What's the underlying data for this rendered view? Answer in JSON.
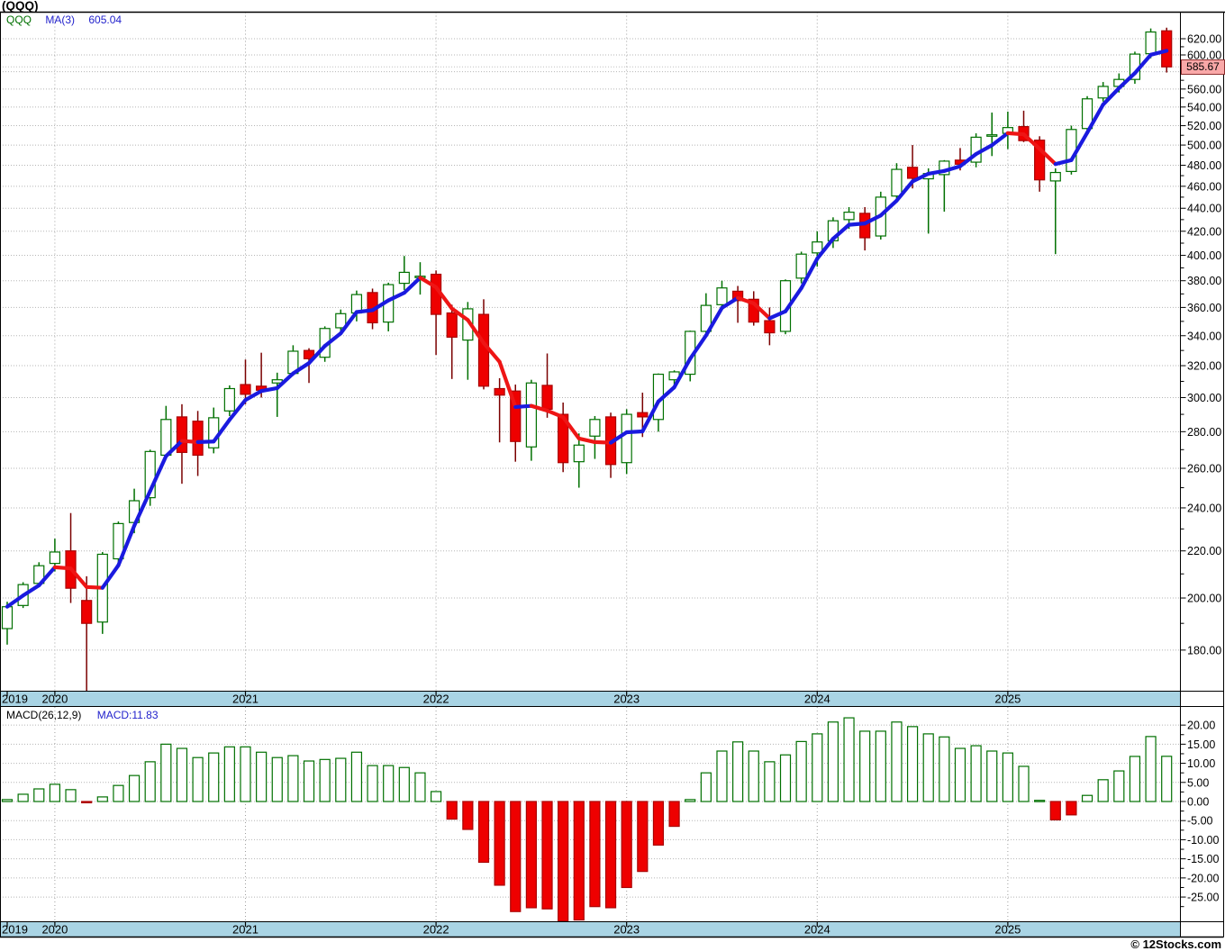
{
  "title": "(QQQ)",
  "legend": {
    "symbol": "QQQ",
    "ma_label": "MA(3)",
    "ma_value": "605.04"
  },
  "macd_legend": {
    "label": "MACD(26,12,9)",
    "value": "MACD:11.83"
  },
  "current_price_label": "585.67",
  "copyright": "© 12Stocks.com",
  "colors": {
    "up": "#007000",
    "up_fill": "#ffffff",
    "down": "#aa0000",
    "down_fill": "#ee0000",
    "down_wick": "#7a0000",
    "ma_up": "#1a1adf",
    "ma_down": "#ee1515",
    "grid": "#9e9e9e",
    "border": "#000000",
    "axis_strip_bg": "#a9d4e4",
    "price_label_bg": "#f9a8a8",
    "price_label_border": "#8e3030",
    "legend_symbol": "#007000",
    "legend_value": "#2222cc",
    "current_price_line": "#c0c0c0"
  },
  "price_axis": {
    "scale": "log",
    "min": 170,
    "max": 630,
    "ticks": [
      {
        "v": 620,
        "t": "620.00"
      },
      {
        "v": 600,
        "t": "600.00"
      },
      {
        "v": 580,
        "t": ""
      },
      {
        "v": 560,
        "t": "560.00"
      },
      {
        "v": 540,
        "t": "540.00"
      },
      {
        "v": 520,
        "t": "520.00"
      },
      {
        "v": 500,
        "t": "500.00"
      },
      {
        "v": 480,
        "t": "480.00"
      },
      {
        "v": 460,
        "t": "460.00"
      },
      {
        "v": 440,
        "t": "440.00"
      },
      {
        "v": 420,
        "t": "420.00"
      },
      {
        "v": 400,
        "t": "400.00"
      },
      {
        "v": 380,
        "t": "380.00"
      },
      {
        "v": 360,
        "t": "360.00"
      },
      {
        "v": 340,
        "t": "340.00"
      },
      {
        "v": 320,
        "t": "320.00"
      },
      {
        "v": 300,
        "t": "300.00"
      },
      {
        "v": 280,
        "t": "280.00"
      },
      {
        "v": 260,
        "t": "260.00"
      },
      {
        "v": 240,
        "t": "240.00"
      },
      {
        "v": 220,
        "t": "220.00"
      },
      {
        "v": 200,
        "t": "200.00"
      },
      {
        "v": 180,
        "t": "180.00"
      }
    ],
    "current_price": 585.67
  },
  "macd_axis": {
    "min": -31.5,
    "max": 21,
    "ticks": [
      {
        "v": 20,
        "t": "20.00"
      },
      {
        "v": 15,
        "t": "15.00"
      },
      {
        "v": 10,
        "t": "10.00"
      },
      {
        "v": 5,
        "t": "5.00"
      },
      {
        "v": 0,
        "t": "0.00"
      },
      {
        "v": -5,
        "t": "-5.00"
      },
      {
        "v": -10,
        "t": "-10.00"
      },
      {
        "v": -15,
        "t": "-15.00"
      },
      {
        "v": -20,
        "t": "-20.00"
      },
      {
        "v": -25,
        "t": "-25.00"
      }
    ]
  },
  "chart_data": {
    "type": "candlestick",
    "symbol": "QQQ",
    "interval": "monthly",
    "ma_period": 3,
    "x_year_labels": [
      "2019",
      "2020",
      "2021",
      "2022",
      "2023",
      "2024",
      "2025"
    ],
    "candles": [
      [
        "2019-10",
        188,
        198.5,
        182,
        196.5
      ],
      [
        "2019-11",
        197,
        206.5,
        196,
        205.5
      ],
      [
        "2019-12",
        206,
        215,
        204.5,
        213.5
      ],
      [
        "2020-01",
        214.5,
        225.5,
        211,
        219.5
      ],
      [
        "2020-02",
        220,
        237.5,
        198,
        204
      ],
      [
        "2020-03",
        199,
        209,
        165,
        190
      ],
      [
        "2020-04",
        190.5,
        219.5,
        186,
        218.5
      ],
      [
        "2020-05",
        216.5,
        233.5,
        213,
        232.5
      ],
      [
        "2020-06",
        233,
        249.5,
        228,
        243.5
      ],
      [
        "2020-07",
        245,
        270,
        241,
        269
      ],
      [
        "2020-08",
        267,
        295,
        265.5,
        287
      ],
      [
        "2020-09",
        288.5,
        296,
        252,
        268.5
      ],
      [
        "2020-10",
        286,
        292,
        256,
        267
      ],
      [
        "2020-11",
        271,
        294,
        268,
        288
      ],
      [
        "2020-12",
        292,
        307.5,
        289,
        305.5
      ],
      [
        "2021-01",
        308,
        324,
        296,
        302
      ],
      [
        "2021-02",
        307,
        328.5,
        300,
        304.5
      ],
      [
        "2021-03",
        309,
        315.5,
        288.5,
        311
      ],
      [
        "2021-04",
        315,
        333.5,
        313.5,
        329.5
      ],
      [
        "2021-05",
        330,
        331.5,
        309,
        324.5
      ],
      [
        "2021-06",
        325.5,
        346.5,
        322.5,
        345
      ],
      [
        "2021-07",
        345.5,
        358.5,
        340.5,
        355.5
      ],
      [
        "2021-08",
        356,
        372.5,
        350,
        369.5
      ],
      [
        "2021-09",
        371,
        374,
        344.5,
        349
      ],
      [
        "2021-10",
        349.5,
        378.5,
        343,
        377
      ],
      [
        "2021-11",
        378,
        399.5,
        373,
        386.5
      ],
      [
        "2021-12",
        382.5,
        394.5,
        369.5,
        383.5
      ],
      [
        "2022-01",
        385,
        388,
        327,
        355
      ],
      [
        "2022-02",
        356,
        362,
        311.5,
        339
      ],
      [
        "2022-03",
        337,
        364,
        311,
        359
      ],
      [
        "2022-04",
        355,
        366,
        305,
        307
      ],
      [
        "2022-05",
        305.5,
        312,
        274,
        301.5
      ],
      [
        "2022-06",
        304,
        308,
        263.5,
        274.5
      ],
      [
        "2022-07",
        271.5,
        311,
        264,
        309
      ],
      [
        "2022-08",
        307.5,
        328,
        288,
        293
      ],
      [
        "2022-09",
        290,
        297,
        258,
        263
      ],
      [
        "2022-10",
        263.5,
        279,
        250,
        272.5
      ],
      [
        "2022-11",
        277.5,
        289,
        265,
        287
      ],
      [
        "2022-12",
        288.5,
        291,
        255,
        262
      ],
      [
        "2023-01",
        263,
        293,
        257,
        290
      ],
      [
        "2023-02",
        291,
        303,
        277,
        288.5
      ],
      [
        "2023-03",
        287,
        315,
        280,
        314.5
      ],
      [
        "2023-04",
        311,
        317,
        305,
        316
      ],
      [
        "2023-05",
        314.5,
        343.5,
        310,
        343
      ],
      [
        "2023-06",
        343,
        370.5,
        339,
        361.5
      ],
      [
        "2023-07",
        362,
        380,
        358,
        374.5
      ],
      [
        "2023-08",
        372,
        376,
        349,
        365
      ],
      [
        "2023-09",
        366,
        372,
        347,
        349.5
      ],
      [
        "2023-10",
        350.5,
        360,
        333.5,
        342
      ],
      [
        "2023-11",
        343,
        381,
        341,
        380
      ],
      [
        "2023-12",
        382,
        403,
        378,
        401
      ],
      [
        "2024-01",
        402,
        420,
        391,
        411
      ],
      [
        "2024-02",
        412,
        432,
        406,
        429
      ],
      [
        "2024-03",
        430,
        441,
        422,
        436.5
      ],
      [
        "2024-04",
        435.5,
        441,
        404,
        414.5
      ],
      [
        "2024-05",
        416,
        455,
        413,
        450
      ],
      [
        "2024-06",
        451,
        482,
        445,
        476
      ],
      [
        "2024-07",
        478,
        500,
        458,
        467.5
      ],
      [
        "2024-08",
        467,
        477,
        418,
        472
      ],
      [
        "2024-09",
        471,
        485,
        437,
        484
      ],
      [
        "2024-10",
        485,
        497,
        475,
        481
      ],
      [
        "2024-11",
        483,
        512,
        478,
        508
      ],
      [
        "2024-12",
        509,
        534,
        489,
        510.5
      ],
      [
        "2025-01",
        512,
        535,
        496,
        518
      ],
      [
        "2025-02",
        519,
        536,
        503,
        504.5
      ],
      [
        "2025-03",
        505,
        509,
        455,
        466
      ],
      [
        "2025-04",
        465,
        477,
        401,
        473
      ],
      [
        "2025-05",
        474,
        520,
        471,
        516
      ],
      [
        "2025-06",
        517,
        552,
        512,
        549
      ],
      [
        "2025-07",
        550,
        568,
        546,
        563
      ],
      [
        "2025-08",
        563,
        578,
        556,
        571
      ],
      [
        "2025-09",
        571,
        604,
        566,
        601
      ],
      [
        "2025-10",
        601.5,
        633,
        596,
        628.5
      ],
      [
        "2025-11",
        630,
        634,
        579,
        585.67
      ]
    ],
    "macd": [
      0.5,
      1.9,
      3.3,
      4.5,
      3.1,
      -0.3,
      1.2,
      4.2,
      6.8,
      10.4,
      15.0,
      13.9,
      11.5,
      12.7,
      14.3,
      14.3,
      12.9,
      11.5,
      12.0,
      10.6,
      11.0,
      11.3,
      12.9,
      9.4,
      9.4,
      8.9,
      7.5,
      2.6,
      -4.6,
      -7.3,
      -15.9,
      -21.9,
      -28.8,
      -27.8,
      -28.1,
      -31.3,
      -31.0,
      -27.5,
      -27.8,
      -22.5,
      -18.3,
      -11.4,
      -6.5,
      0.5,
      7.5,
      13.2,
      15.6,
      13.2,
      10.4,
      12.2,
      15.7,
      17.7,
      20.8,
      21.9,
      18.4,
      18.4,
      20.8,
      19.6,
      17.7,
      16.9,
      13.9,
      14.6,
      13.2,
      12.7,
      9.2,
      0.3,
      -4.8,
      -3.5,
      1.6,
      5.7,
      8.0,
      11.8,
      17.0,
      11.83
    ]
  }
}
